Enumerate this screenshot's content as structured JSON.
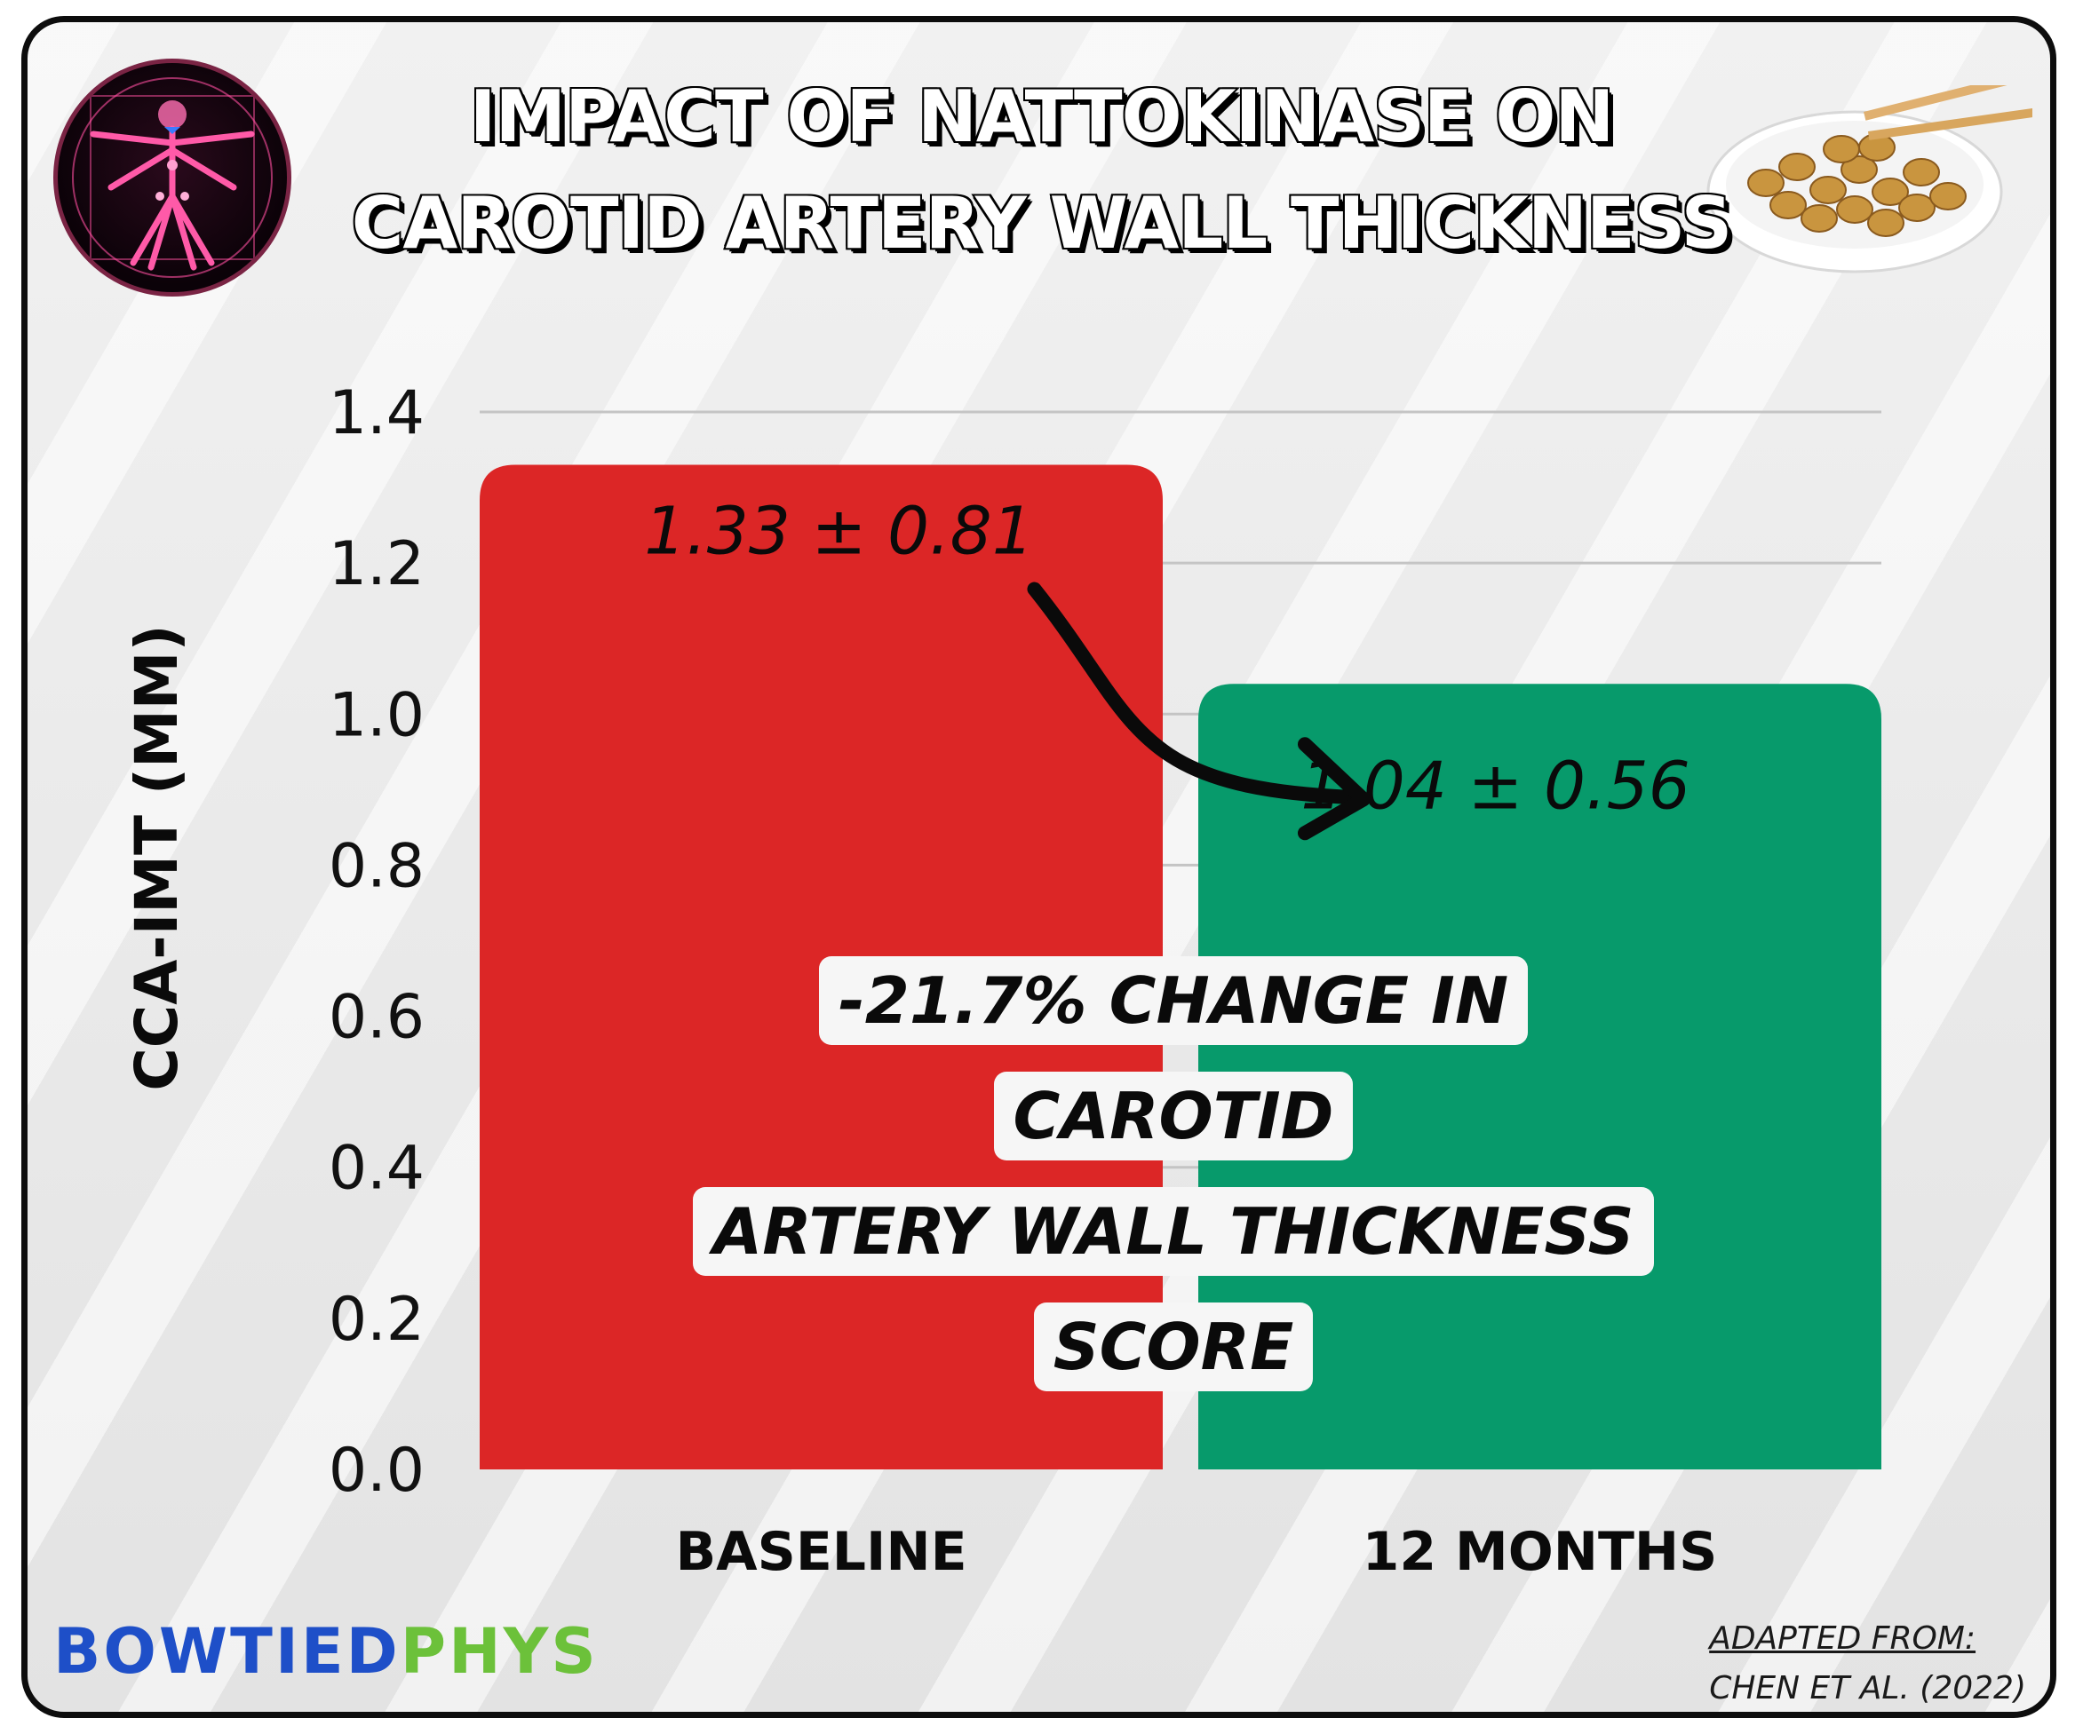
{
  "chart_data": {
    "type": "bar",
    "title": "IMPACT OF NATTOKINASE ON CAROTID ARTERY WALL THICKNESS",
    "title_lines": [
      "IMPACT OF NATTOKINASE ON",
      "CAROTID ARTERY WALL THICKNESS"
    ],
    "ylabel": "CCA-IMT (MM)",
    "xlabel": "",
    "categories": [
      "BASELINE",
      "12 MONTHS"
    ],
    "values": [
      1.33,
      1.04
    ],
    "errors": [
      0.81,
      0.56
    ],
    "value_labels": [
      "1.33 ± 0.81",
      "1.04 ± 0.56"
    ],
    "bar_colors": [
      "#dc2626",
      "#079a6b"
    ],
    "ylim": [
      0,
      1.4
    ],
    "yticks": [
      0,
      0.2,
      0.4,
      0.6,
      0.8,
      1.0,
      1.2,
      1.4
    ],
    "ytick_labels": [
      "0.0",
      "0.2",
      "0.4",
      "0.6",
      "0.8",
      "1.0",
      "1.2",
      "1.4"
    ],
    "grid": true,
    "annotation_lines": [
      "-21.7% CHANGE IN CAROTID",
      "ARTERY WALL THICKNESS",
      "SCORE"
    ]
  },
  "footer": {
    "brand_part1": "BOWTIED",
    "brand_part2": "PHYS",
    "brand_color1": "#1e4fc8",
    "brand_color2": "#6cc13a",
    "source_line1": "ADAPTED FROM:",
    "source_line2": "CHEN ET AL. (2022)"
  },
  "icons": {
    "left": "vitruvian-man-logo-icon",
    "right": "natto-bowl-icon"
  }
}
